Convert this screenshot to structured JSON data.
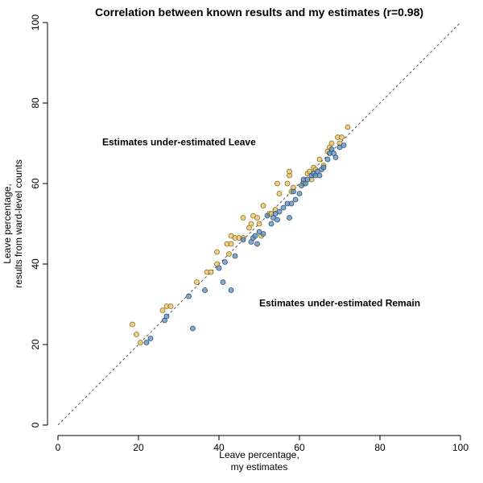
{
  "chart_data": {
    "type": "scatter",
    "title": "Correlation between known results and my estimates (r=0.98)",
    "xlabel": [
      "Leave percentage,",
      "my estimates"
    ],
    "ylabel": [
      "Leave percentage,",
      "results from ward-level counts"
    ],
    "xlim": [
      0,
      100
    ],
    "ylim": [
      0,
      100
    ],
    "xticks": [
      "0",
      "20",
      "40",
      "60",
      "80",
      "100"
    ],
    "yticks": [
      "0",
      "20",
      "40",
      "60",
      "80",
      "100"
    ],
    "reference_line": "y = x",
    "annotations": [
      {
        "text": "Estimates under-estimated Leave",
        "x": 11,
        "y": 69.5
      },
      {
        "text": "Estimates under-estimated Remain",
        "x": 50,
        "y": 29.5
      }
    ],
    "series": [
      {
        "name": "under-estimated Leave",
        "color": "#e9c46a",
        "points": [
          [
            18.5,
            25
          ],
          [
            19.5,
            22.5
          ],
          [
            20.5,
            20.5
          ],
          [
            26,
            28.5
          ],
          [
            27,
            29.5
          ],
          [
            28,
            29.5
          ],
          [
            34.5,
            35.5
          ],
          [
            37,
            38
          ],
          [
            38,
            38
          ],
          [
            39.5,
            40
          ],
          [
            39.5,
            43
          ],
          [
            42,
            45
          ],
          [
            42.5,
            42.5
          ],
          [
            43,
            45
          ],
          [
            43,
            47
          ],
          [
            44,
            46.5
          ],
          [
            45,
            46.5
          ],
          [
            46,
            46.5
          ],
          [
            46,
            51.5
          ],
          [
            47.5,
            49
          ],
          [
            48,
            50
          ],
          [
            48.5,
            52
          ],
          [
            49.5,
            51.5
          ],
          [
            50,
            50
          ],
          [
            50.5,
            47
          ],
          [
            51,
            54.5
          ],
          [
            52.5,
            52.5
          ],
          [
            53,
            52.5
          ],
          [
            54,
            53.5
          ],
          [
            54.5,
            60
          ],
          [
            55,
            57.5
          ],
          [
            57,
            60
          ],
          [
            57.5,
            62
          ],
          [
            57.5,
            63
          ],
          [
            58,
            58
          ],
          [
            58.5,
            59
          ],
          [
            61,
            60
          ],
          [
            62,
            62.5
          ],
          [
            62.5,
            63
          ],
          [
            63,
            61
          ],
          [
            63.5,
            64
          ],
          [
            64,
            63.5
          ],
          [
            65,
            66
          ],
          [
            66,
            64.5
          ],
          [
            67,
            68
          ],
          [
            67.5,
            69
          ],
          [
            68,
            70
          ],
          [
            69.5,
            71.5
          ],
          [
            70,
            70
          ],
          [
            70.5,
            71.5
          ],
          [
            72,
            74
          ]
        ]
      },
      {
        "name": "under-estimated Remain",
        "color": "#5b8fbf",
        "points": [
          [
            22,
            20.5
          ],
          [
            23,
            21.5
          ],
          [
            26.5,
            26
          ],
          [
            27,
            27
          ],
          [
            32.5,
            32
          ],
          [
            33.5,
            24
          ],
          [
            36.5,
            33.5
          ],
          [
            40,
            39
          ],
          [
            41,
            35.5
          ],
          [
            41.5,
            40.5
          ],
          [
            43,
            33.5
          ],
          [
            44,
            42
          ],
          [
            46,
            46
          ],
          [
            48,
            45.5
          ],
          [
            48.5,
            46.5
          ],
          [
            49,
            47
          ],
          [
            49.5,
            45
          ],
          [
            50,
            48
          ],
          [
            51,
            47.5
          ],
          [
            52,
            52
          ],
          [
            53,
            50
          ],
          [
            53.5,
            51.5
          ],
          [
            54,
            52.5
          ],
          [
            54.5,
            51
          ],
          [
            55,
            53
          ],
          [
            56,
            54
          ],
          [
            57,
            55
          ],
          [
            57.5,
            51.5
          ],
          [
            58,
            55
          ],
          [
            58.5,
            58
          ],
          [
            59,
            56
          ],
          [
            60,
            57.5
          ],
          [
            60.5,
            59.5
          ],
          [
            61,
            61
          ],
          [
            61.5,
            60
          ],
          [
            62,
            61
          ],
          [
            63,
            62
          ],
          [
            63.5,
            62.5
          ],
          [
            64,
            62
          ],
          [
            64.5,
            63
          ],
          [
            65,
            62
          ],
          [
            65.5,
            63.5
          ],
          [
            66,
            64
          ],
          [
            67,
            66
          ],
          [
            67.5,
            67.5
          ],
          [
            68,
            68.5
          ],
          [
            68.5,
            67.5
          ],
          [
            69,
            66.5
          ],
          [
            70,
            69
          ],
          [
            71,
            69.5
          ]
        ]
      }
    ]
  }
}
